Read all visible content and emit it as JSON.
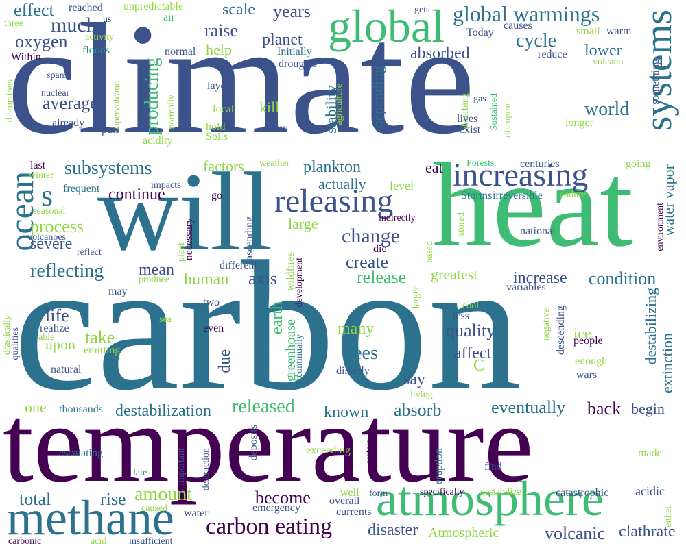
{
  "palette": {
    "dark_purple": "#440154",
    "indigo": "#3b528b",
    "teal_blue": "#2c728e",
    "teal": "#21918c",
    "green": "#3fbc73",
    "lime": "#8fd744",
    "yellow": "#d8e219"
  },
  "words": [
    "climate",
    "carbon",
    "temperature",
    "will",
    "heat",
    "atmosphere",
    "methane",
    "global",
    "increasing",
    "releasing",
    "ocean",
    "systems",
    "global warmings",
    "carbon eating",
    "effect",
    "much",
    "oxygen",
    "raise",
    "planet",
    "years",
    "scale",
    "cycle",
    "lower",
    "absorbed",
    "help",
    "average",
    "producing",
    "world",
    "subsystems",
    "plankton",
    "continue",
    "process",
    "reflecting",
    "mean",
    "human",
    "axis",
    "release",
    "change",
    "create",
    "severe",
    "condition",
    "increase",
    "life",
    "take",
    "upon",
    "many",
    "quality",
    "affect",
    "trees",
    "earth",
    "due",
    "destabilization",
    "released",
    "known",
    "absorb",
    "eventually",
    "back",
    "begin",
    "one",
    "total",
    "rise",
    "amount",
    "become",
    "disaster",
    "volcanic",
    "clathrate",
    "Atmospheric",
    "water vapor",
    "destabilizing",
    "extinction",
    "greatest",
    "factors",
    "eat",
    "kill",
    "level",
    "large",
    "actually",
    "greenhouse",
    "s",
    "C",
    "say",
    "stability",
    "depending",
    "reached",
    "unpredictable",
    "air",
    "gets",
    "causes",
    "small",
    "warm",
    "Today",
    "Initially",
    "three",
    "activity",
    "floods",
    "normal",
    "reduce",
    "something",
    "Within",
    "spans",
    "nuclear",
    "us",
    "supervolcano",
    "disruptions",
    "layers",
    "droughts",
    "agriculture",
    "absorbing",
    "gas",
    "Sustained",
    "disruptor",
    "volcano",
    "lives",
    "exist",
    "longer",
    "local",
    "hold",
    "Soils",
    "occur",
    "already",
    "puts",
    "normally",
    "acidity",
    "last",
    "winter",
    "frequent",
    "weather",
    "Forests",
    "centuries",
    "going",
    "impacts",
    "go",
    "Storms",
    "irreversible",
    "endure",
    "environment",
    "seasonal",
    "indirectly",
    "volcanoes",
    "necessary",
    "ascending",
    "die",
    "stored",
    "national",
    "reflect",
    "plant",
    "different",
    "based",
    "wildfires",
    "development",
    "produce",
    "may",
    "variables",
    "two",
    "larger",
    "sea",
    "realize",
    "able",
    "drastically",
    "qualities",
    "emitting",
    "natural",
    "even",
    "cool",
    "less",
    "negative",
    "descending",
    "people",
    "enough",
    "wars",
    "ice",
    "directly",
    "continually",
    "living",
    "thousands",
    "escalating",
    "important",
    "destruction",
    "late",
    "deposits",
    "exceeding",
    "certain",
    "eruption",
    "find",
    "made",
    "caused",
    "water",
    "emergency",
    "overall",
    "currents",
    "well",
    "form",
    "specifically",
    "destabilize",
    "catastrophic",
    "acidic",
    "either",
    "carbonic",
    "acid",
    "insufficient"
  ]
}
